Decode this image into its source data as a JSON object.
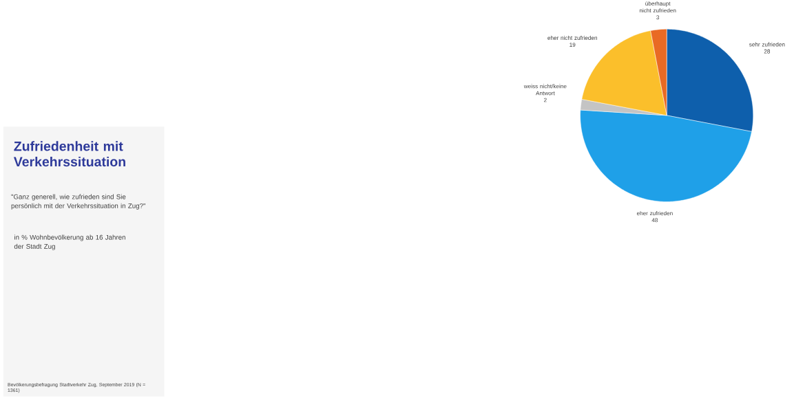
{
  "chart_data": {
    "type": "pie",
    "title": "Zufriedenheit mit Verkehrssituation",
    "subtitle": "\"Ganz generell, wie zufrieden sind Sie persönlich mit der Verkehrssituation in Zug?\"",
    "annotations": [
      "in % Wohnbevölkerung ab 16 Jahren der Stadt Zug",
      "Bevölkerungsbefragung Stadtverkehr Zug, September 2019 (N = 1361)"
    ],
    "categories": [
      "sehr zufrieden",
      "eher zufrieden",
      "weiss nicht/keine Antwort",
      "eher nicht zufrieden",
      "überhaupt nicht zufrieden"
    ],
    "values": [
      28,
      48,
      2,
      19,
      3
    ],
    "colors": [
      "#0e5fac",
      "#1fa0e8",
      "#c4c4c4",
      "#fbbf2b",
      "#e96a24"
    ],
    "data_labels": true
  }
}
